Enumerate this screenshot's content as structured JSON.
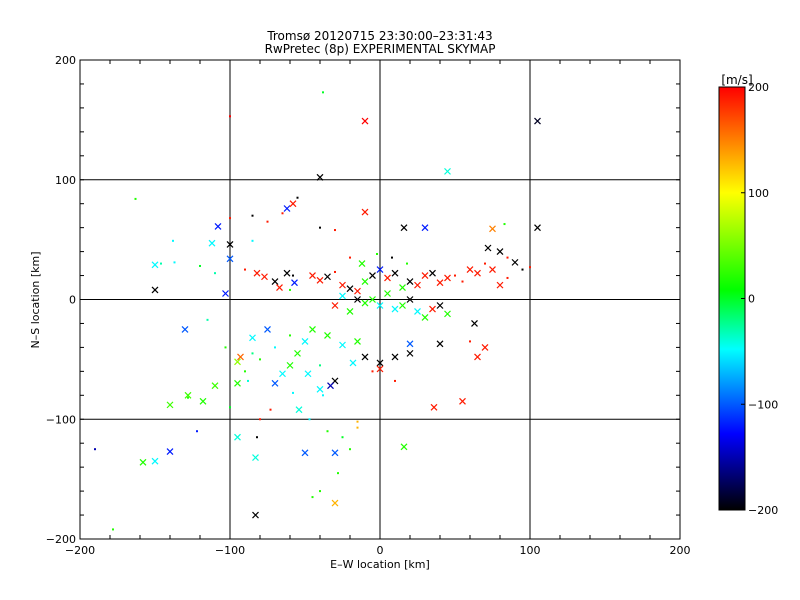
{
  "chart_data": {
    "type": "scatter",
    "title": "Tromsø 20120715 23:30:00–23:31:43",
    "subtitle": "RwPretec (8p) EXPERIMENTAL SKYMAP",
    "xlabel": "E–W location [km]",
    "ylabel": "N–S location [km]",
    "xlim": [
      -200,
      200
    ],
    "ylim": [
      -200,
      200
    ],
    "xticks": [
      -200,
      -100,
      0,
      100,
      200
    ],
    "yticks": [
      -200,
      -100,
      0,
      100,
      200
    ],
    "grid": true,
    "colorbar": {
      "label": "[m/s]",
      "min": -200,
      "max": 200,
      "ticks": [
        200,
        100,
        0,
        -100,
        -200
      ],
      "colors": [
        "#000000",
        "#0000ff",
        "#00ffff",
        "#00ff00",
        "#ffff00",
        "#ff0000"
      ]
    },
    "marker_legend": "dots: small scatter, crosses: large marker",
    "points": [
      [
        -38,
        173,
        0,
        "d"
      ],
      [
        -10,
        149,
        200,
        "x"
      ],
      [
        -100,
        153,
        200,
        "d"
      ],
      [
        105,
        149,
        -190,
        "x"
      ],
      [
        45,
        107,
        -40,
        "x"
      ],
      [
        -40,
        102,
        -200,
        "x"
      ],
      [
        -163,
        84,
        20,
        "d"
      ],
      [
        -10,
        73,
        190,
        "x"
      ],
      [
        -62,
        76,
        -120,
        "x"
      ],
      [
        -58,
        80,
        190,
        "x"
      ],
      [
        -55,
        85,
        -200,
        "d"
      ],
      [
        -65,
        72,
        190,
        "d"
      ],
      [
        -108,
        61,
        -120,
        "x"
      ],
      [
        -100,
        68,
        190,
        "d"
      ],
      [
        -85,
        70,
        -200,
        "d"
      ],
      [
        -75,
        65,
        190,
        "d"
      ],
      [
        -40,
        60,
        -200,
        "d"
      ],
      [
        -30,
        58,
        190,
        "d"
      ],
      [
        16,
        60,
        -200,
        "x"
      ],
      [
        30,
        60,
        -120,
        "x"
      ],
      [
        75,
        59,
        150,
        "x"
      ],
      [
        83,
        63,
        20,
        "d"
      ],
      [
        105,
        60,
        -200,
        "x"
      ],
      [
        -112,
        47,
        -50,
        "x"
      ],
      [
        -100,
        46,
        -200,
        "x"
      ],
      [
        -85,
        49,
        -50,
        "d"
      ],
      [
        -138,
        49,
        -50,
        "d"
      ],
      [
        -150,
        29,
        -50,
        "x"
      ],
      [
        -146,
        30,
        -30,
        "d"
      ],
      [
        -137,
        31,
        -50,
        "d"
      ],
      [
        -120,
        28,
        0,
        "d"
      ],
      [
        -100,
        34,
        -100,
        "x"
      ],
      [
        -103,
        5,
        -120,
        "x"
      ],
      [
        -150,
        8,
        -200,
        "x"
      ],
      [
        -110,
        22,
        -30,
        "d"
      ],
      [
        -90,
        25,
        190,
        "d"
      ],
      [
        -130,
        -25,
        -100,
        "x"
      ],
      [
        -115,
        -17,
        -30,
        "d"
      ],
      [
        -93,
        -48,
        160,
        "x"
      ],
      [
        -95,
        -52,
        60,
        "x"
      ],
      [
        -85,
        -45,
        -20,
        "d"
      ],
      [
        -103,
        -40,
        20,
        "d"
      ],
      [
        -95,
        -70,
        20,
        "x"
      ],
      [
        -110,
        -72,
        30,
        "x"
      ],
      [
        -118,
        -85,
        20,
        "x"
      ],
      [
        -140,
        -88,
        30,
        "x"
      ],
      [
        -128,
        -80,
        30,
        "x"
      ],
      [
        -128,
        -82,
        20,
        "d"
      ],
      [
        -100,
        -90,
        0,
        "d"
      ],
      [
        -95,
        -115,
        -40,
        "x"
      ],
      [
        -82,
        -115,
        -200,
        "d"
      ],
      [
        -83,
        -132,
        -40,
        "x"
      ],
      [
        -80,
        -100,
        190,
        "d"
      ],
      [
        -73,
        -92,
        190,
        "d"
      ],
      [
        -58,
        -78,
        -50,
        "d"
      ],
      [
        -54,
        -92,
        -40,
        "x"
      ],
      [
        -48,
        -62,
        -50,
        "x"
      ],
      [
        -47,
        -100,
        -50,
        "d"
      ],
      [
        -40,
        -55,
        -20,
        "d"
      ],
      [
        -122,
        -110,
        -120,
        "d"
      ],
      [
        -190,
        -125,
        -150,
        "d"
      ],
      [
        -140,
        -127,
        -120,
        "x"
      ],
      [
        -150,
        -135,
        -50,
        "x"
      ],
      [
        -158,
        -136,
        20,
        "x"
      ],
      [
        -178,
        -192,
        20,
        "d"
      ],
      [
        -83,
        -180,
        -200,
        "x"
      ],
      [
        -50,
        -128,
        -100,
        "x"
      ],
      [
        -30,
        -128,
        -100,
        "x"
      ],
      [
        -28,
        -145,
        20,
        "d"
      ],
      [
        -30,
        -170,
        130,
        "x"
      ],
      [
        -45,
        -165,
        20,
        "d"
      ],
      [
        -40,
        -160,
        20,
        "d"
      ],
      [
        -15,
        -102,
        130,
        "d"
      ],
      [
        -15,
        -107,
        130,
        "d"
      ],
      [
        -25,
        -115,
        0,
        "d"
      ],
      [
        -20,
        -125,
        20,
        "d"
      ],
      [
        -35,
        -110,
        20,
        "d"
      ],
      [
        16,
        -123,
        20,
        "x"
      ],
      [
        36,
        -90,
        190,
        "x"
      ],
      [
        55,
        -85,
        190,
        "x"
      ],
      [
        -40,
        -75,
        -50,
        "x"
      ],
      [
        -30,
        -68,
        -200,
        "x"
      ],
      [
        -33,
        -72,
        -150,
        "x"
      ],
      [
        -38,
        -80,
        -50,
        "d"
      ],
      [
        -18,
        -53,
        -50,
        "x"
      ],
      [
        -10,
        -48,
        -200,
        "x"
      ],
      [
        0,
        -53,
        -200,
        "x"
      ],
      [
        0,
        -58,
        190,
        "x"
      ],
      [
        10,
        -48,
        -200,
        "x"
      ],
      [
        20,
        -45,
        -200,
        "x"
      ],
      [
        20,
        -37,
        -100,
        "x"
      ],
      [
        -5,
        -60,
        190,
        "d"
      ],
      [
        10,
        -68,
        190,
        "d"
      ],
      [
        40,
        -37,
        -200,
        "x"
      ],
      [
        63,
        -20,
        -200,
        "x"
      ],
      [
        70,
        -40,
        190,
        "x"
      ],
      [
        65,
        -48,
        190,
        "x"
      ],
      [
        60,
        -35,
        190,
        "d"
      ],
      [
        95,
        25,
        -200,
        "d"
      ],
      [
        90,
        31,
        -200,
        "x"
      ],
      [
        80,
        40,
        -200,
        "x"
      ],
      [
        72,
        43,
        -200,
        "x"
      ],
      [
        85,
        35,
        190,
        "d"
      ],
      [
        100,
        27,
        190,
        "d"
      ],
      [
        -62,
        22,
        -200,
        "x"
      ],
      [
        -70,
        15,
        -200,
        "x"
      ],
      [
        -57,
        14,
        -120,
        "x"
      ],
      [
        -67,
        10,
        190,
        "x"
      ],
      [
        -82,
        22,
        190,
        "x"
      ],
      [
        -77,
        19,
        190,
        "x"
      ],
      [
        -60,
        8,
        20,
        "d"
      ],
      [
        -58,
        20,
        -200,
        "d"
      ],
      [
        -45,
        20,
        190,
        "x"
      ],
      [
        -40,
        16,
        190,
        "x"
      ],
      [
        -35,
        19,
        -200,
        "x"
      ],
      [
        -30,
        23,
        190,
        "d"
      ],
      [
        -25,
        12,
        190,
        "x"
      ],
      [
        -20,
        9,
        -200,
        "x"
      ],
      [
        -15,
        7,
        190,
        "x"
      ],
      [
        -10,
        15,
        20,
        "x"
      ],
      [
        -5,
        20,
        -200,
        "x"
      ],
      [
        0,
        25,
        -120,
        "x"
      ],
      [
        5,
        18,
        190,
        "x"
      ],
      [
        10,
        22,
        -200,
        "x"
      ],
      [
        15,
        10,
        20,
        "x"
      ],
      [
        20,
        15,
        -200,
        "x"
      ],
      [
        25,
        12,
        190,
        "x"
      ],
      [
        30,
        20,
        190,
        "x"
      ],
      [
        35,
        22,
        -200,
        "x"
      ],
      [
        40,
        14,
        190,
        "x"
      ],
      [
        45,
        18,
        190,
        "x"
      ],
      [
        50,
        20,
        190,
        "d"
      ],
      [
        55,
        15,
        190,
        "d"
      ],
      [
        60,
        25,
        190,
        "x"
      ],
      [
        65,
        22,
        190,
        "x"
      ],
      [
        70,
        30,
        190,
        "d"
      ],
      [
        75,
        25,
        190,
        "x"
      ],
      [
        80,
        12,
        190,
        "x"
      ],
      [
        85,
        18,
        190,
        "d"
      ],
      [
        -5,
        0,
        20,
        "x"
      ],
      [
        0,
        -5,
        -50,
        "x"
      ],
      [
        5,
        5,
        20,
        "x"
      ],
      [
        10,
        -8,
        -50,
        "x"
      ],
      [
        -10,
        -3,
        20,
        "x"
      ],
      [
        -15,
        0,
        -200,
        "x"
      ],
      [
        -20,
        -10,
        20,
        "x"
      ],
      [
        -25,
        3,
        -50,
        "x"
      ],
      [
        -30,
        -5,
        190,
        "x"
      ],
      [
        15,
        -5,
        20,
        "x"
      ],
      [
        20,
        0,
        -200,
        "x"
      ],
      [
        25,
        -10,
        -50,
        "x"
      ],
      [
        30,
        -15,
        20,
        "x"
      ],
      [
        35,
        -8,
        190,
        "x"
      ],
      [
        40,
        -5,
        -200,
        "x"
      ],
      [
        45,
        -12,
        20,
        "x"
      ],
      [
        -12,
        30,
        20,
        "x"
      ],
      [
        -2,
        38,
        20,
        "d"
      ],
      [
        8,
        35,
        -200,
        "d"
      ],
      [
        -20,
        35,
        190,
        "d"
      ],
      [
        18,
        30,
        20,
        "d"
      ],
      [
        -45,
        -25,
        20,
        "x"
      ],
      [
        -50,
        -35,
        -50,
        "x"
      ],
      [
        -55,
        -45,
        20,
        "x"
      ],
      [
        -60,
        -55,
        20,
        "x"
      ],
      [
        -65,
        -62,
        -50,
        "x"
      ],
      [
        -70,
        -70,
        -100,
        "x"
      ],
      [
        -35,
        -30,
        20,
        "x"
      ],
      [
        -25,
        -38,
        -50,
        "x"
      ],
      [
        -15,
        -35,
        20,
        "x"
      ],
      [
        -60,
        -30,
        20,
        "d"
      ],
      [
        -70,
        -40,
        -50,
        "d"
      ],
      [
        -80,
        -50,
        20,
        "d"
      ],
      [
        -75,
        -25,
        -100,
        "x"
      ],
      [
        -85,
        -32,
        -50,
        "x"
      ],
      [
        -90,
        -60,
        20,
        "d"
      ],
      [
        -88,
        -68,
        -40,
        "d"
      ]
    ]
  }
}
